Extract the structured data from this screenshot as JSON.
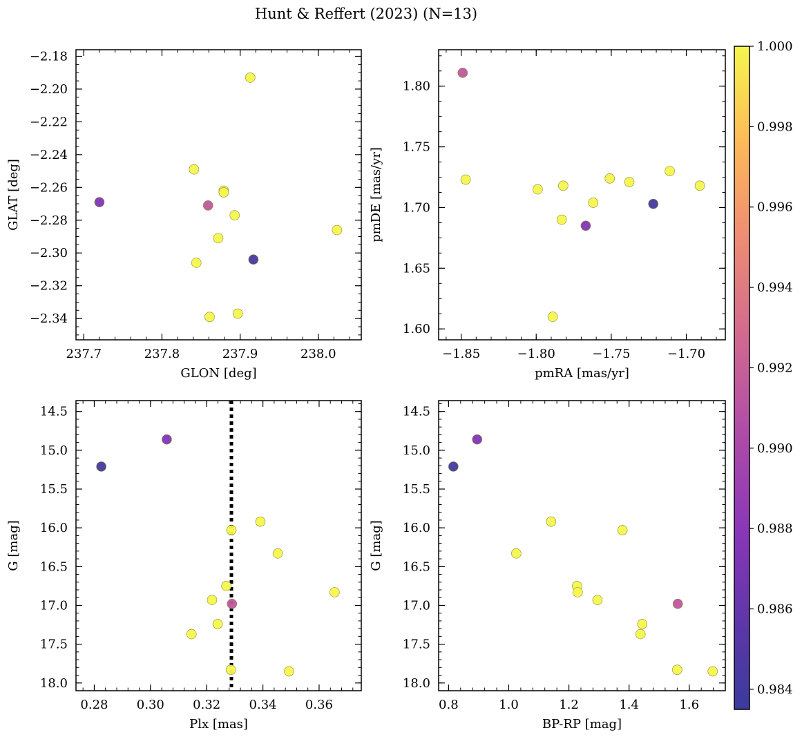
{
  "figure": {
    "title": "Hunt & Reffert (2023) (N=13)"
  },
  "colorbar": {
    "ticks": [
      0.984,
      0.986,
      0.988,
      0.99,
      0.992,
      0.994,
      0.996,
      0.998,
      1.0
    ],
    "tick_labels": [
      "0.984",
      "0.986",
      "0.988",
      "0.990",
      "0.992",
      "0.994",
      "0.996",
      "0.998",
      "1.000"
    ],
    "range": [
      0.9835,
      1.0
    ],
    "colormap": "plasma"
  },
  "chart_data": [
    {
      "type": "scatter",
      "xlabel": "GLON [deg]",
      "ylabel": "GLAT [deg]",
      "xlim": [
        237.69,
        238.055
      ],
      "ylim": [
        -2.353,
        -2.176
      ],
      "xticks": [
        237.7,
        237.8,
        237.9,
        238.0
      ],
      "xtick_labels": [
        "237.7",
        "237.8",
        "237.9",
        "238.0"
      ],
      "yticks": [
        -2.34,
        -2.32,
        -2.3,
        -2.28,
        -2.26,
        -2.24,
        -2.22,
        -2.2,
        -2.18
      ],
      "ytick_labels": [
        "−2.34",
        "−2.32",
        "−2.30",
        "−2.28",
        "−2.26",
        "−2.24",
        "−2.22",
        "−2.20",
        "−2.18"
      ],
      "points": [
        {
          "x": 237.72,
          "y": -2.269,
          "c": 0.9875
        },
        {
          "x": 237.917,
          "y": -2.304,
          "c": 0.984
        },
        {
          "x": 237.859,
          "y": -2.271,
          "c": 0.9915
        },
        {
          "x": 237.913,
          "y": -2.193,
          "c": 1.0
        },
        {
          "x": 237.841,
          "y": -2.249,
          "c": 1.0
        },
        {
          "x": 237.879,
          "y": -2.262,
          "c": 1.0
        },
        {
          "x": 237.879,
          "y": -2.263,
          "c": 1.0
        },
        {
          "x": 237.893,
          "y": -2.277,
          "c": 1.0
        },
        {
          "x": 237.872,
          "y": -2.291,
          "c": 1.0
        },
        {
          "x": 237.844,
          "y": -2.306,
          "c": 1.0
        },
        {
          "x": 237.861,
          "y": -2.339,
          "c": 1.0
        },
        {
          "x": 237.897,
          "y": -2.337,
          "c": 1.0
        },
        {
          "x": 238.024,
          "y": -2.286,
          "c": 1.0
        }
      ]
    },
    {
      "type": "scatter",
      "xlabel": "pmRA [mas/yr]",
      "ylabel": "pmDE [mas/yr]",
      "xlim": [
        -1.865,
        -1.674
      ],
      "ylim": [
        1.591,
        1.83
      ],
      "xticks": [
        -1.85,
        -1.8,
        -1.75,
        -1.7
      ],
      "xtick_labels": [
        "−1.85",
        "−1.80",
        "−1.75",
        "−1.70"
      ],
      "yticks": [
        1.6,
        1.65,
        1.7,
        1.75,
        1.8
      ],
      "ytick_labels": [
        "1.60",
        "1.65",
        "1.70",
        "1.75",
        "1.80"
      ],
      "points": [
        {
          "x": -1.849,
          "y": 1.811,
          "c": 0.9915
        },
        {
          "x": -1.767,
          "y": 1.685,
          "c": 0.9875
        },
        {
          "x": -1.722,
          "y": 1.703,
          "c": 0.984
        },
        {
          "x": -1.847,
          "y": 1.723,
          "c": 1.0
        },
        {
          "x": -1.799,
          "y": 1.715,
          "c": 1.0
        },
        {
          "x": -1.782,
          "y": 1.718,
          "c": 1.0
        },
        {
          "x": -1.783,
          "y": 1.69,
          "c": 1.0
        },
        {
          "x": -1.762,
          "y": 1.704,
          "c": 1.0
        },
        {
          "x": -1.751,
          "y": 1.724,
          "c": 1.0
        },
        {
          "x": -1.738,
          "y": 1.721,
          "c": 1.0
        },
        {
          "x": -1.711,
          "y": 1.73,
          "c": 1.0
        },
        {
          "x": -1.691,
          "y": 1.718,
          "c": 1.0
        },
        {
          "x": -1.789,
          "y": 1.61,
          "c": 1.0
        }
      ]
    },
    {
      "type": "scatter",
      "xlabel": "Plx [mas]",
      "ylabel": "G [mag]",
      "xlim": [
        0.2735,
        0.375
      ],
      "ylim": [
        18.1,
        14.36
      ],
      "xticks": [
        0.28,
        0.3,
        0.32,
        0.34,
        0.36
      ],
      "xtick_labels": [
        "0.28",
        "0.30",
        "0.32",
        "0.34",
        "0.36"
      ],
      "yticks": [
        14.5,
        15.0,
        15.5,
        16.0,
        16.5,
        17.0,
        17.5,
        18.0
      ],
      "ytick_labels": [
        "14.5",
        "15.0",
        "15.5",
        "16.0",
        "16.5",
        "17.0",
        "17.5",
        "18.0"
      ],
      "vline": 0.3288,
      "points": [
        {
          "x": 0.2825,
          "y": 15.21,
          "c": 0.984
        },
        {
          "x": 0.3058,
          "y": 14.86,
          "c": 0.9875
        },
        {
          "x": 0.329,
          "y": 16.98,
          "c": 0.9915
        },
        {
          "x": 0.3391,
          "y": 15.92,
          "c": 1.0
        },
        {
          "x": 0.3288,
          "y": 16.03,
          "c": 1.0
        },
        {
          "x": 0.3453,
          "y": 16.33,
          "c": 1.0
        },
        {
          "x": 0.327,
          "y": 16.75,
          "c": 1.0
        },
        {
          "x": 0.3655,
          "y": 16.83,
          "c": 1.0
        },
        {
          "x": 0.3219,
          "y": 16.93,
          "c": 1.0
        },
        {
          "x": 0.3239,
          "y": 17.24,
          "c": 1.0
        },
        {
          "x": 0.3146,
          "y": 17.37,
          "c": 1.0
        },
        {
          "x": 0.3286,
          "y": 17.83,
          "c": 1.0
        },
        {
          "x": 0.3493,
          "y": 17.85,
          "c": 1.0
        }
      ]
    },
    {
      "type": "scatter",
      "xlabel": "BP-RP [mag]",
      "ylabel": "G [mag]",
      "xlim": [
        0.767,
        1.72
      ],
      "ylim": [
        18.1,
        14.36
      ],
      "xticks": [
        0.8,
        1.0,
        1.2,
        1.4,
        1.6
      ],
      "xtick_labels": [
        "0.8",
        "1.0",
        "1.2",
        "1.4",
        "1.6"
      ],
      "yticks": [
        14.5,
        15.0,
        15.5,
        16.0,
        16.5,
        17.0,
        17.5,
        18.0
      ],
      "ytick_labels": [
        "14.5",
        "15.0",
        "15.5",
        "16.0",
        "16.5",
        "17.0",
        "17.5",
        "18.0"
      ],
      "points": [
        {
          "x": 0.816,
          "y": 15.21,
          "c": 0.984
        },
        {
          "x": 0.895,
          "y": 14.86,
          "c": 0.9875
        },
        {
          "x": 1.562,
          "y": 16.98,
          "c": 0.9915
        },
        {
          "x": 1.141,
          "y": 15.92,
          "c": 1.0
        },
        {
          "x": 1.378,
          "y": 16.03,
          "c": 1.0
        },
        {
          "x": 1.025,
          "y": 16.33,
          "c": 1.0
        },
        {
          "x": 1.227,
          "y": 16.75,
          "c": 1.0
        },
        {
          "x": 1.229,
          "y": 16.83,
          "c": 1.0
        },
        {
          "x": 1.295,
          "y": 16.93,
          "c": 1.0
        },
        {
          "x": 1.444,
          "y": 17.24,
          "c": 1.0
        },
        {
          "x": 1.438,
          "y": 17.37,
          "c": 1.0
        },
        {
          "x": 1.56,
          "y": 17.83,
          "c": 1.0
        },
        {
          "x": 1.678,
          "y": 17.85,
          "c": 1.0
        }
      ]
    }
  ]
}
